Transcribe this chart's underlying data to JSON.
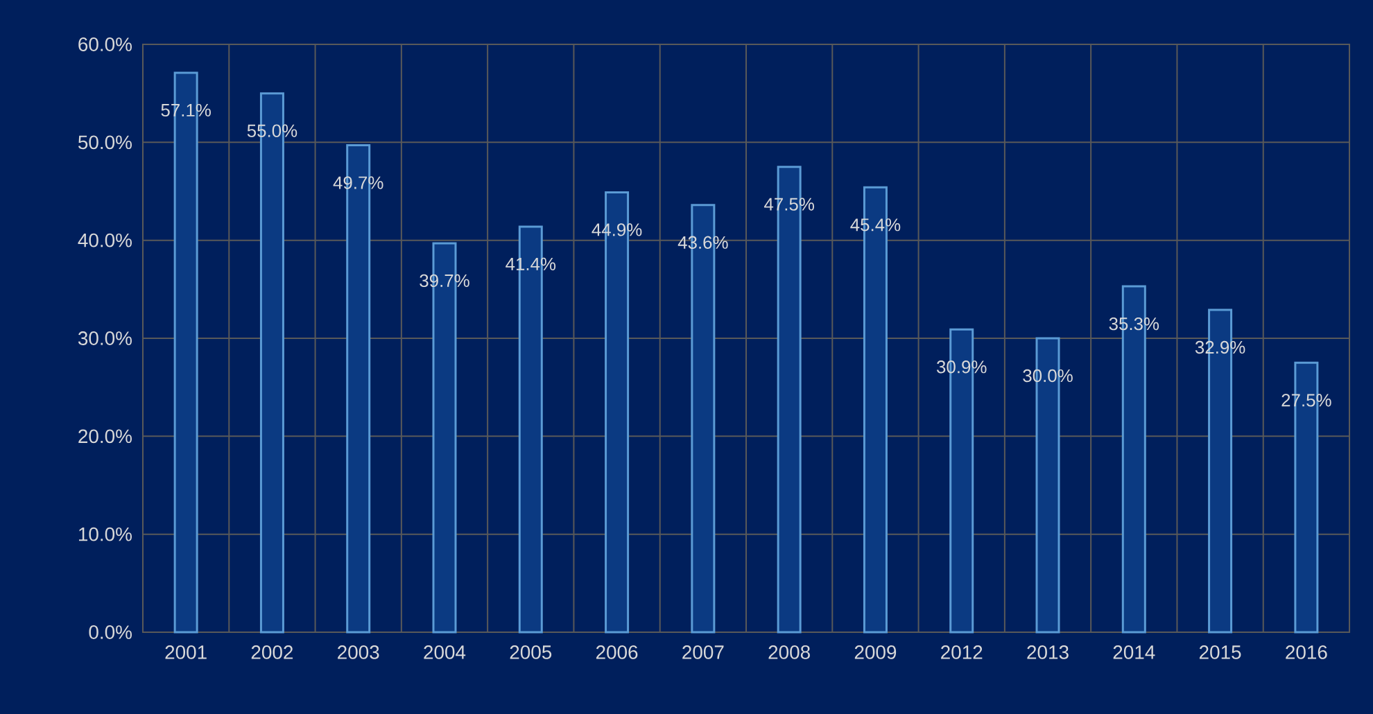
{
  "chart_data": {
    "type": "bar",
    "categories": [
      "2001",
      "2002",
      "2003",
      "2004",
      "2005",
      "2006",
      "2007",
      "2008",
      "2009",
      "2012",
      "2013",
      "2014",
      "2015",
      "2016"
    ],
    "values": [
      57.1,
      55.0,
      49.7,
      39.7,
      41.4,
      44.9,
      43.6,
      47.5,
      45.4,
      30.9,
      30.0,
      35.3,
      32.9,
      27.5
    ],
    "value_labels": [
      "57.1%",
      "55.0%",
      "49.7%",
      "39.7%",
      "41.4%",
      "44.9%",
      "43.6%",
      "47.5%",
      "45.4%",
      "30.9%",
      "30.0%",
      "35.3%",
      "32.9%",
      "27.5%"
    ],
    "color": "#0b3a82",
    "ylim": [
      0,
      60
    ],
    "yticks": [
      {
        "value": 0,
        "label": "0.0%"
      },
      {
        "value": 10,
        "label": "10.0%"
      },
      {
        "value": 20,
        "label": "20.0%"
      },
      {
        "value": 30,
        "label": "30.0%"
      },
      {
        "value": 40,
        "label": "40.0%"
      },
      {
        "value": 50,
        "label": "50.0%"
      },
      {
        "value": 60,
        "label": "60.0%"
      }
    ],
    "grid": true
  }
}
